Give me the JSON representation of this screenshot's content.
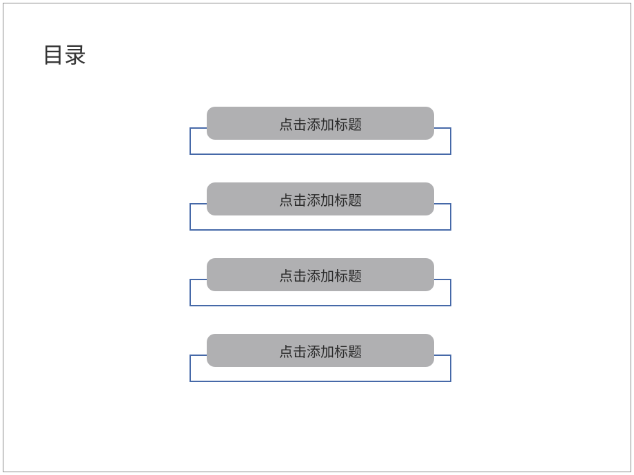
{
  "slide": {
    "title": "目录",
    "items": [
      {
        "label": "点击添加标题"
      },
      {
        "label": "点击添加标题"
      },
      {
        "label": "点击添加标题"
      },
      {
        "label": "点击添加标题"
      }
    ]
  },
  "style": {
    "background_color": "#ffffff",
    "frame_border_color": "#888888",
    "title_color": "#333333",
    "title_fontsize": 32,
    "pill_background": "#b0b0b2",
    "pill_text_color": "#2a2a2a",
    "pill_fontsize": 20,
    "pill_border_radius": 12,
    "outline_border_color": "#4669a8",
    "outline_border_width": 2,
    "item_spacing": 40
  }
}
